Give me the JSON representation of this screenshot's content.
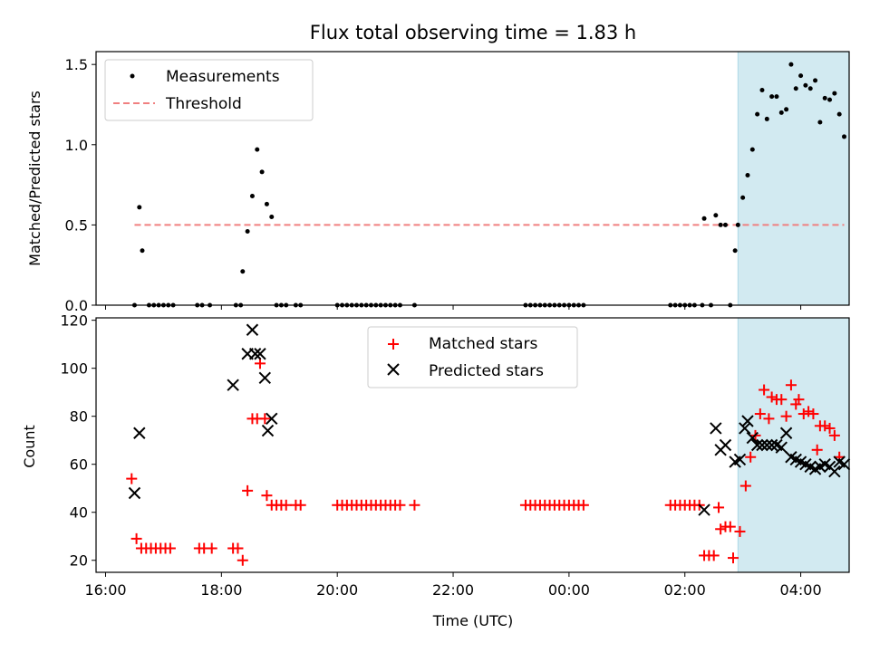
{
  "title": "Flux total observing time = 1.83 h",
  "xlabel": "Time (UTC)",
  "x_ticks": [
    "16:00",
    "18:00",
    "20:00",
    "22:00",
    "00:00",
    "02:00",
    "04:00"
  ],
  "colors": {
    "measurements": "#000000",
    "threshold": "#f08080",
    "matched": "#ff0000",
    "predicted": "#000000",
    "span": "#add8e6"
  },
  "chart_data": [
    {
      "type": "scatter",
      "ylabel": "Matched/Predicted stars",
      "ylim": [
        0,
        1.58
      ],
      "xlim": [
        "16:00",
        "05:00"
      ],
      "y_ticks": [
        "0.0",
        "0.5",
        "1.0",
        "1.5"
      ],
      "legend_position": "upper-left",
      "highlight_span": [
        "02:55",
        "04:50"
      ],
      "threshold": {
        "name": "Threshold",
        "y": 0.5,
        "x": [
          "16:30",
          "04:45"
        ]
      },
      "series": [
        {
          "name": "Measurements",
          "points": [
            [
              "16:35",
              0.61
            ],
            [
              "16:38",
              0.34
            ],
            [
              "16:30",
              0.0
            ],
            [
              "16:45",
              0.0
            ],
            [
              "16:50",
              0.0
            ],
            [
              "16:55",
              0.0
            ],
            [
              "17:00",
              0.0
            ],
            [
              "17:05",
              0.0
            ],
            [
              "17:10",
              0.0
            ],
            [
              "17:35",
              0.0
            ],
            [
              "17:40",
              0.0
            ],
            [
              "17:48",
              0.0
            ],
            [
              "18:15",
              0.0
            ],
            [
              "18:20",
              0.0
            ],
            [
              "18:22",
              0.21
            ],
            [
              "18:27",
              0.46
            ],
            [
              "18:32",
              0.68
            ],
            [
              "18:37",
              0.97
            ],
            [
              "18:42",
              0.83
            ],
            [
              "18:47",
              0.63
            ],
            [
              "18:52",
              0.55
            ],
            [
              "18:57",
              0.0
            ],
            [
              "19:02",
              0.0
            ],
            [
              "19:07",
              0.0
            ],
            [
              "19:17",
              0.0
            ],
            [
              "19:22",
              0.0
            ],
            [
              "20:00",
              0.0
            ],
            [
              "20:05",
              0.0
            ],
            [
              "20:10",
              0.0
            ],
            [
              "20:15",
              0.0
            ],
            [
              "20:20",
              0.0
            ],
            [
              "20:25",
              0.0
            ],
            [
              "20:30",
              0.0
            ],
            [
              "20:35",
              0.0
            ],
            [
              "20:40",
              0.0
            ],
            [
              "20:45",
              0.0
            ],
            [
              "20:50",
              0.0
            ],
            [
              "20:55",
              0.0
            ],
            [
              "21:00",
              0.0
            ],
            [
              "21:05",
              0.0
            ],
            [
              "21:20",
              0.0
            ],
            [
              "23:15",
              0.0
            ],
            [
              "23:20",
              0.0
            ],
            [
              "23:25",
              0.0
            ],
            [
              "23:30",
              0.0
            ],
            [
              "23:35",
              0.0
            ],
            [
              "23:40",
              0.0
            ],
            [
              "23:45",
              0.0
            ],
            [
              "23:50",
              0.0
            ],
            [
              "23:55",
              0.0
            ],
            [
              "00:00",
              0.0
            ],
            [
              "00:05",
              0.0
            ],
            [
              "00:10",
              0.0
            ],
            [
              "00:15",
              0.0
            ],
            [
              "01:45",
              0.0
            ],
            [
              "01:50",
              0.0
            ],
            [
              "01:55",
              0.0
            ],
            [
              "02:00",
              0.0
            ],
            [
              "02:05",
              0.0
            ],
            [
              "02:10",
              0.0
            ],
            [
              "02:18",
              0.0
            ],
            [
              "02:20",
              0.54
            ],
            [
              "02:27",
              0.0
            ],
            [
              "02:32",
              0.56
            ],
            [
              "02:37",
              0.5
            ],
            [
              "02:42",
              0.5
            ],
            [
              "02:47",
              0.0
            ],
            [
              "02:52",
              0.34
            ],
            [
              "02:55",
              0.5
            ],
            [
              "03:00",
              0.67
            ],
            [
              "03:05",
              0.81
            ],
            [
              "03:10",
              0.97
            ],
            [
              "03:15",
              1.19
            ],
            [
              "03:20",
              1.34
            ],
            [
              "03:25",
              1.16
            ],
            [
              "03:30",
              1.3
            ],
            [
              "03:35",
              1.3
            ],
            [
              "03:40",
              1.2
            ],
            [
              "03:45",
              1.22
            ],
            [
              "03:50",
              1.5
            ],
            [
              "03:55",
              1.35
            ],
            [
              "04:00",
              1.43
            ],
            [
              "04:05",
              1.37
            ],
            [
              "04:10",
              1.35
            ],
            [
              "04:15",
              1.4
            ],
            [
              "04:20",
              1.14
            ],
            [
              "04:25",
              1.29
            ],
            [
              "04:30",
              1.28
            ],
            [
              "04:35",
              1.32
            ],
            [
              "04:40",
              1.19
            ],
            [
              "04:45",
              1.05
            ]
          ]
        }
      ]
    },
    {
      "type": "scatter",
      "ylabel": "Count",
      "ylim": [
        15,
        121
      ],
      "xlim": [
        "16:00",
        "05:00"
      ],
      "y_ticks": [
        "20",
        "40",
        "60",
        "80",
        "100",
        "120"
      ],
      "legend_position": "upper-center",
      "highlight_span": [
        "02:55",
        "04:50"
      ],
      "series": [
        {
          "name": "Matched stars",
          "points": [
            [
              "16:27",
              54
            ],
            [
              "16:32",
              29
            ],
            [
              "16:37",
              25
            ],
            [
              "16:42",
              25
            ],
            [
              "16:47",
              25
            ],
            [
              "16:52",
              25
            ],
            [
              "16:57",
              25
            ],
            [
              "17:02",
              25
            ],
            [
              "17:07",
              25
            ],
            [
              "17:37",
              25
            ],
            [
              "17:42",
              25
            ],
            [
              "17:50",
              25
            ],
            [
              "18:12",
              25
            ],
            [
              "18:17",
              25
            ],
            [
              "18:22",
              20
            ],
            [
              "18:27",
              49
            ],
            [
              "18:32",
              79
            ],
            [
              "18:37",
              79
            ],
            [
              "18:40",
              102
            ],
            [
              "18:45",
              79
            ],
            [
              "18:47",
              47
            ],
            [
              "18:52",
              43
            ],
            [
              "18:57",
              43
            ],
            [
              "19:02",
              43
            ],
            [
              "19:07",
              43
            ],
            [
              "19:17",
              43
            ],
            [
              "19:22",
              43
            ],
            [
              "20:00",
              43
            ],
            [
              "20:05",
              43
            ],
            [
              "20:10",
              43
            ],
            [
              "20:15",
              43
            ],
            [
              "20:20",
              43
            ],
            [
              "20:25",
              43
            ],
            [
              "20:30",
              43
            ],
            [
              "20:35",
              43
            ],
            [
              "20:40",
              43
            ],
            [
              "20:45",
              43
            ],
            [
              "20:50",
              43
            ],
            [
              "20:55",
              43
            ],
            [
              "21:00",
              43
            ],
            [
              "21:05",
              43
            ],
            [
              "21:20",
              43
            ],
            [
              "23:15",
              43
            ],
            [
              "23:20",
              43
            ],
            [
              "23:25",
              43
            ],
            [
              "23:30",
              43
            ],
            [
              "23:35",
              43
            ],
            [
              "23:40",
              43
            ],
            [
              "23:45",
              43
            ],
            [
              "23:50",
              43
            ],
            [
              "23:55",
              43
            ],
            [
              "00:00",
              43
            ],
            [
              "00:05",
              43
            ],
            [
              "00:10",
              43
            ],
            [
              "00:15",
              43
            ],
            [
              "01:45",
              43
            ],
            [
              "01:50",
              43
            ],
            [
              "01:55",
              43
            ],
            [
              "02:00",
              43
            ],
            [
              "02:05",
              43
            ],
            [
              "02:10",
              43
            ],
            [
              "02:15",
              43
            ],
            [
              "02:20",
              22
            ],
            [
              "02:25",
              22
            ],
            [
              "02:30",
              22
            ],
            [
              "02:35",
              42
            ],
            [
              "02:37",
              33
            ],
            [
              "02:42",
              34
            ],
            [
              "02:47",
              34
            ],
            [
              "02:50",
              21
            ],
            [
              "02:57",
              32
            ],
            [
              "03:03",
              51
            ],
            [
              "03:08",
              63
            ],
            [
              "03:13",
              72
            ],
            [
              "03:18",
              81
            ],
            [
              "03:22",
              91
            ],
            [
              "03:27",
              79
            ],
            [
              "03:30",
              88
            ],
            [
              "03:35",
              87
            ],
            [
              "03:40",
              87
            ],
            [
              "03:45",
              80
            ],
            [
              "03:50",
              93
            ],
            [
              "03:55",
              85
            ],
            [
              "03:58",
              87
            ],
            [
              "04:03",
              81
            ],
            [
              "04:08",
              82
            ],
            [
              "04:13",
              81
            ],
            [
              "04:17",
              66
            ],
            [
              "04:20",
              76
            ],
            [
              "04:25",
              76
            ],
            [
              "04:30",
              75
            ],
            [
              "04:35",
              72
            ],
            [
              "04:40",
              63
            ]
          ]
        },
        {
          "name": "Predicted stars",
          "points": [
            [
              "16:30",
              48
            ],
            [
              "16:35",
              73
            ],
            [
              "18:12",
              93
            ],
            [
              "18:27",
              106
            ],
            [
              "18:32",
              116
            ],
            [
              "18:35",
              106
            ],
            [
              "18:40",
              106
            ],
            [
              "18:45",
              96
            ],
            [
              "18:48",
              74
            ],
            [
              "18:52",
              79
            ],
            [
              "02:20",
              41
            ],
            [
              "02:32",
              75
            ],
            [
              "02:37",
              66
            ],
            [
              "02:42",
              68
            ],
            [
              "02:52",
              61
            ],
            [
              "02:57",
              62
            ],
            [
              "03:02",
              75
            ],
            [
              "03:05",
              78
            ],
            [
              "03:10",
              71
            ],
            [
              "03:15",
              68
            ],
            [
              "03:20",
              68
            ],
            [
              "03:25",
              68
            ],
            [
              "03:30",
              68
            ],
            [
              "03:35",
              68
            ],
            [
              "03:40",
              67
            ],
            [
              "03:45",
              73
            ],
            [
              "03:50",
              63
            ],
            [
              "03:55",
              62
            ],
            [
              "04:00",
              61
            ],
            [
              "04:05",
              60
            ],
            [
              "04:10",
              59
            ],
            [
              "04:15",
              58
            ],
            [
              "04:20",
              59
            ],
            [
              "04:25",
              60
            ],
            [
              "04:30",
              59
            ],
            [
              "04:35",
              57
            ],
            [
              "04:40",
              61
            ],
            [
              "04:45",
              60
            ]
          ]
        }
      ]
    }
  ]
}
